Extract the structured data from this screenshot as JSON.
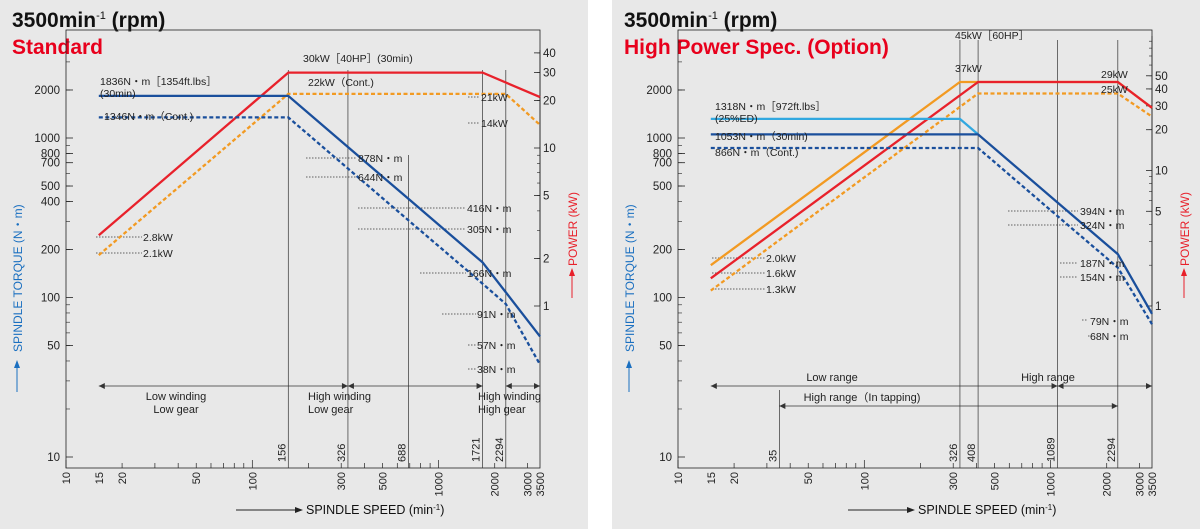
{
  "chart_data": [
    {
      "type": "line",
      "title": "3500min",
      "title_sup": "-1",
      "title_suffix": " (rpm)",
      "subtitle": "Standard",
      "xlabel": "SPINDLE SPEED",
      "xunit": "(min",
      "xunit_sup": "-1",
      "xunit_end": ")",
      "ylabel": "SPINDLE TORQUE",
      "yunit": "(N・m)",
      "y2label": "POWER",
      "y2unit": "(kW)",
      "x_scale": "log",
      "xlim": [
        10,
        3500
      ],
      "ylim": [
        10,
        2500
      ],
      "y2lim": [
        1,
        40
      ],
      "x_ticks": [
        "10",
        "15",
        "20",
        "50",
        "100",
        "300",
        "500",
        "1000",
        "2000",
        "3000",
        "3500"
      ],
      "y_ticks": [
        "10",
        "50",
        "100",
        "200",
        "400",
        "500",
        "700",
        "800",
        "1000",
        "2000"
      ],
      "y2_ticks": [
        "1",
        "2",
        "5",
        "10",
        "20",
        "30",
        "40"
      ],
      "markers": [
        "156",
        "326",
        "688",
        "1721",
        "2294"
      ],
      "colors": {
        "red": "#e8212b",
        "orange": "#f29a22",
        "blue": "#1a4f9c"
      },
      "series": [
        {
          "axis": "power",
          "color": "red",
          "style": "solid",
          "x": [
            15,
            156,
            1721,
            3500
          ],
          "y": [
            2.8,
            30,
            30,
            21
          ]
        },
        {
          "axis": "power",
          "color": "orange",
          "style": "dashed",
          "x": [
            15,
            156,
            2294,
            3500
          ],
          "y": [
            2.1,
            22,
            22,
            14
          ]
        },
        {
          "axis": "torque",
          "color": "blue",
          "style": "solid",
          "x": [
            15,
            156,
            326,
            688,
            1721,
            3500
          ],
          "y": [
            1836,
            1836,
            878,
            416,
            166,
            57
          ]
        },
        {
          "axis": "torque",
          "color": "blue",
          "style": "dashed",
          "x": [
            15,
            156,
            326,
            688,
            1721,
            2294,
            3500
          ],
          "y": [
            1346,
            1346,
            644,
            305,
            122,
            91,
            38
          ]
        }
      ],
      "annotations": [
        "1836N・m［1354ft.lbs］",
        "(30min)",
        "1346N・m（Cont.)",
        "30kW［40HP］(30min)",
        "22kW（Cont.)",
        "21kW",
        "14kW",
        "878N・m",
        "644N・m",
        "416N・m",
        "305N・m",
        "166N・m",
        "91N・m",
        "57N・m",
        "38N・m",
        "2.8kW",
        "2.1kW"
      ],
      "ranges": [
        {
          "label": "Low winding",
          "label2": "Low gear"
        },
        {
          "label": "High winding",
          "label2": "Low gear"
        },
        {
          "label": "High winding",
          "label2": "High gear"
        }
      ]
    },
    {
      "type": "line",
      "title": "3500min",
      "title_sup": "-1",
      "title_suffix": " (rpm)",
      "subtitle": "High Power Spec. (Option)",
      "xlabel": "SPINDLE SPEED",
      "xunit": "(min",
      "xunit_sup": "-1",
      "xunit_end": ")",
      "ylabel": "SPINDLE TORQUE",
      "yunit": "(N・m)",
      "y2label": "POWER",
      "y2unit": "(kW)",
      "x_scale": "log",
      "xlim": [
        10,
        3500
      ],
      "ylim": [
        10,
        2500
      ],
      "y2lim": [
        1,
        50
      ],
      "x_ticks": [
        "10",
        "15",
        "20",
        "50",
        "100",
        "300",
        "500",
        "1000",
        "2000",
        "3000",
        "3500"
      ],
      "y_ticks": [
        "10",
        "50",
        "100",
        "200",
        "500",
        "700",
        "800",
        "1000",
        "2000"
      ],
      "y2_ticks": [
        "1",
        "5",
        "10",
        "20",
        "30",
        "40",
        "50"
      ],
      "markers": [
        "35",
        "326",
        "408",
        "1089",
        "2294"
      ],
      "colors": {
        "red": "#e8212b",
        "orange": "#f29a22",
        "blue": "#1a4f9c",
        "lightblue": "#31a8e0"
      },
      "series": [
        {
          "axis": "power",
          "color": "orange",
          "style": "solid",
          "x": [
            15,
            326,
            408,
            2294,
            3500
          ],
          "y": [
            2.0,
            45,
            45,
            45,
            29
          ]
        },
        {
          "axis": "power",
          "color": "red",
          "style": "solid",
          "x": [
            15,
            408,
            2294,
            3500
          ],
          "y": [
            1.6,
            45,
            45,
            29
          ]
        },
        {
          "axis": "power",
          "color": "orange",
          "style": "dashed",
          "x": [
            15,
            408,
            2294,
            3500
          ],
          "y": [
            1.3,
            37,
            37,
            25
          ]
        },
        {
          "axis": "torque",
          "color": "lightblue",
          "style": "solid",
          "x": [
            15,
            326,
            408
          ],
          "y": [
            1318,
            1318,
            1053
          ]
        },
        {
          "axis": "torque",
          "color": "blue",
          "style": "solid",
          "x": [
            15,
            408,
            1089,
            2294,
            3500
          ],
          "y": [
            1053,
            1053,
            394,
            187,
            79
          ]
        },
        {
          "axis": "torque",
          "color": "blue",
          "style": "dashed",
          "x": [
            15,
            408,
            1089,
            2294,
            3500
          ],
          "y": [
            866,
            866,
            324,
            154,
            68
          ]
        }
      ],
      "annotations": [
        "1318N・m［972ft.lbs］",
        "(25%ED)",
        "1053N・m（30min)",
        "866N・m（Cont.)",
        "45kW［60HP］",
        "37kW",
        "29kW",
        "25kW",
        "394N・m",
        "324N・m",
        "187N・m",
        "154N・m",
        "79N・m",
        "68N・m",
        "2.0kW",
        "1.6kW",
        "1.3kW"
      ],
      "ranges": [
        {
          "label": "Low range"
        },
        {
          "label": "High range"
        },
        {
          "label": "High range（In tapping)"
        }
      ]
    }
  ]
}
